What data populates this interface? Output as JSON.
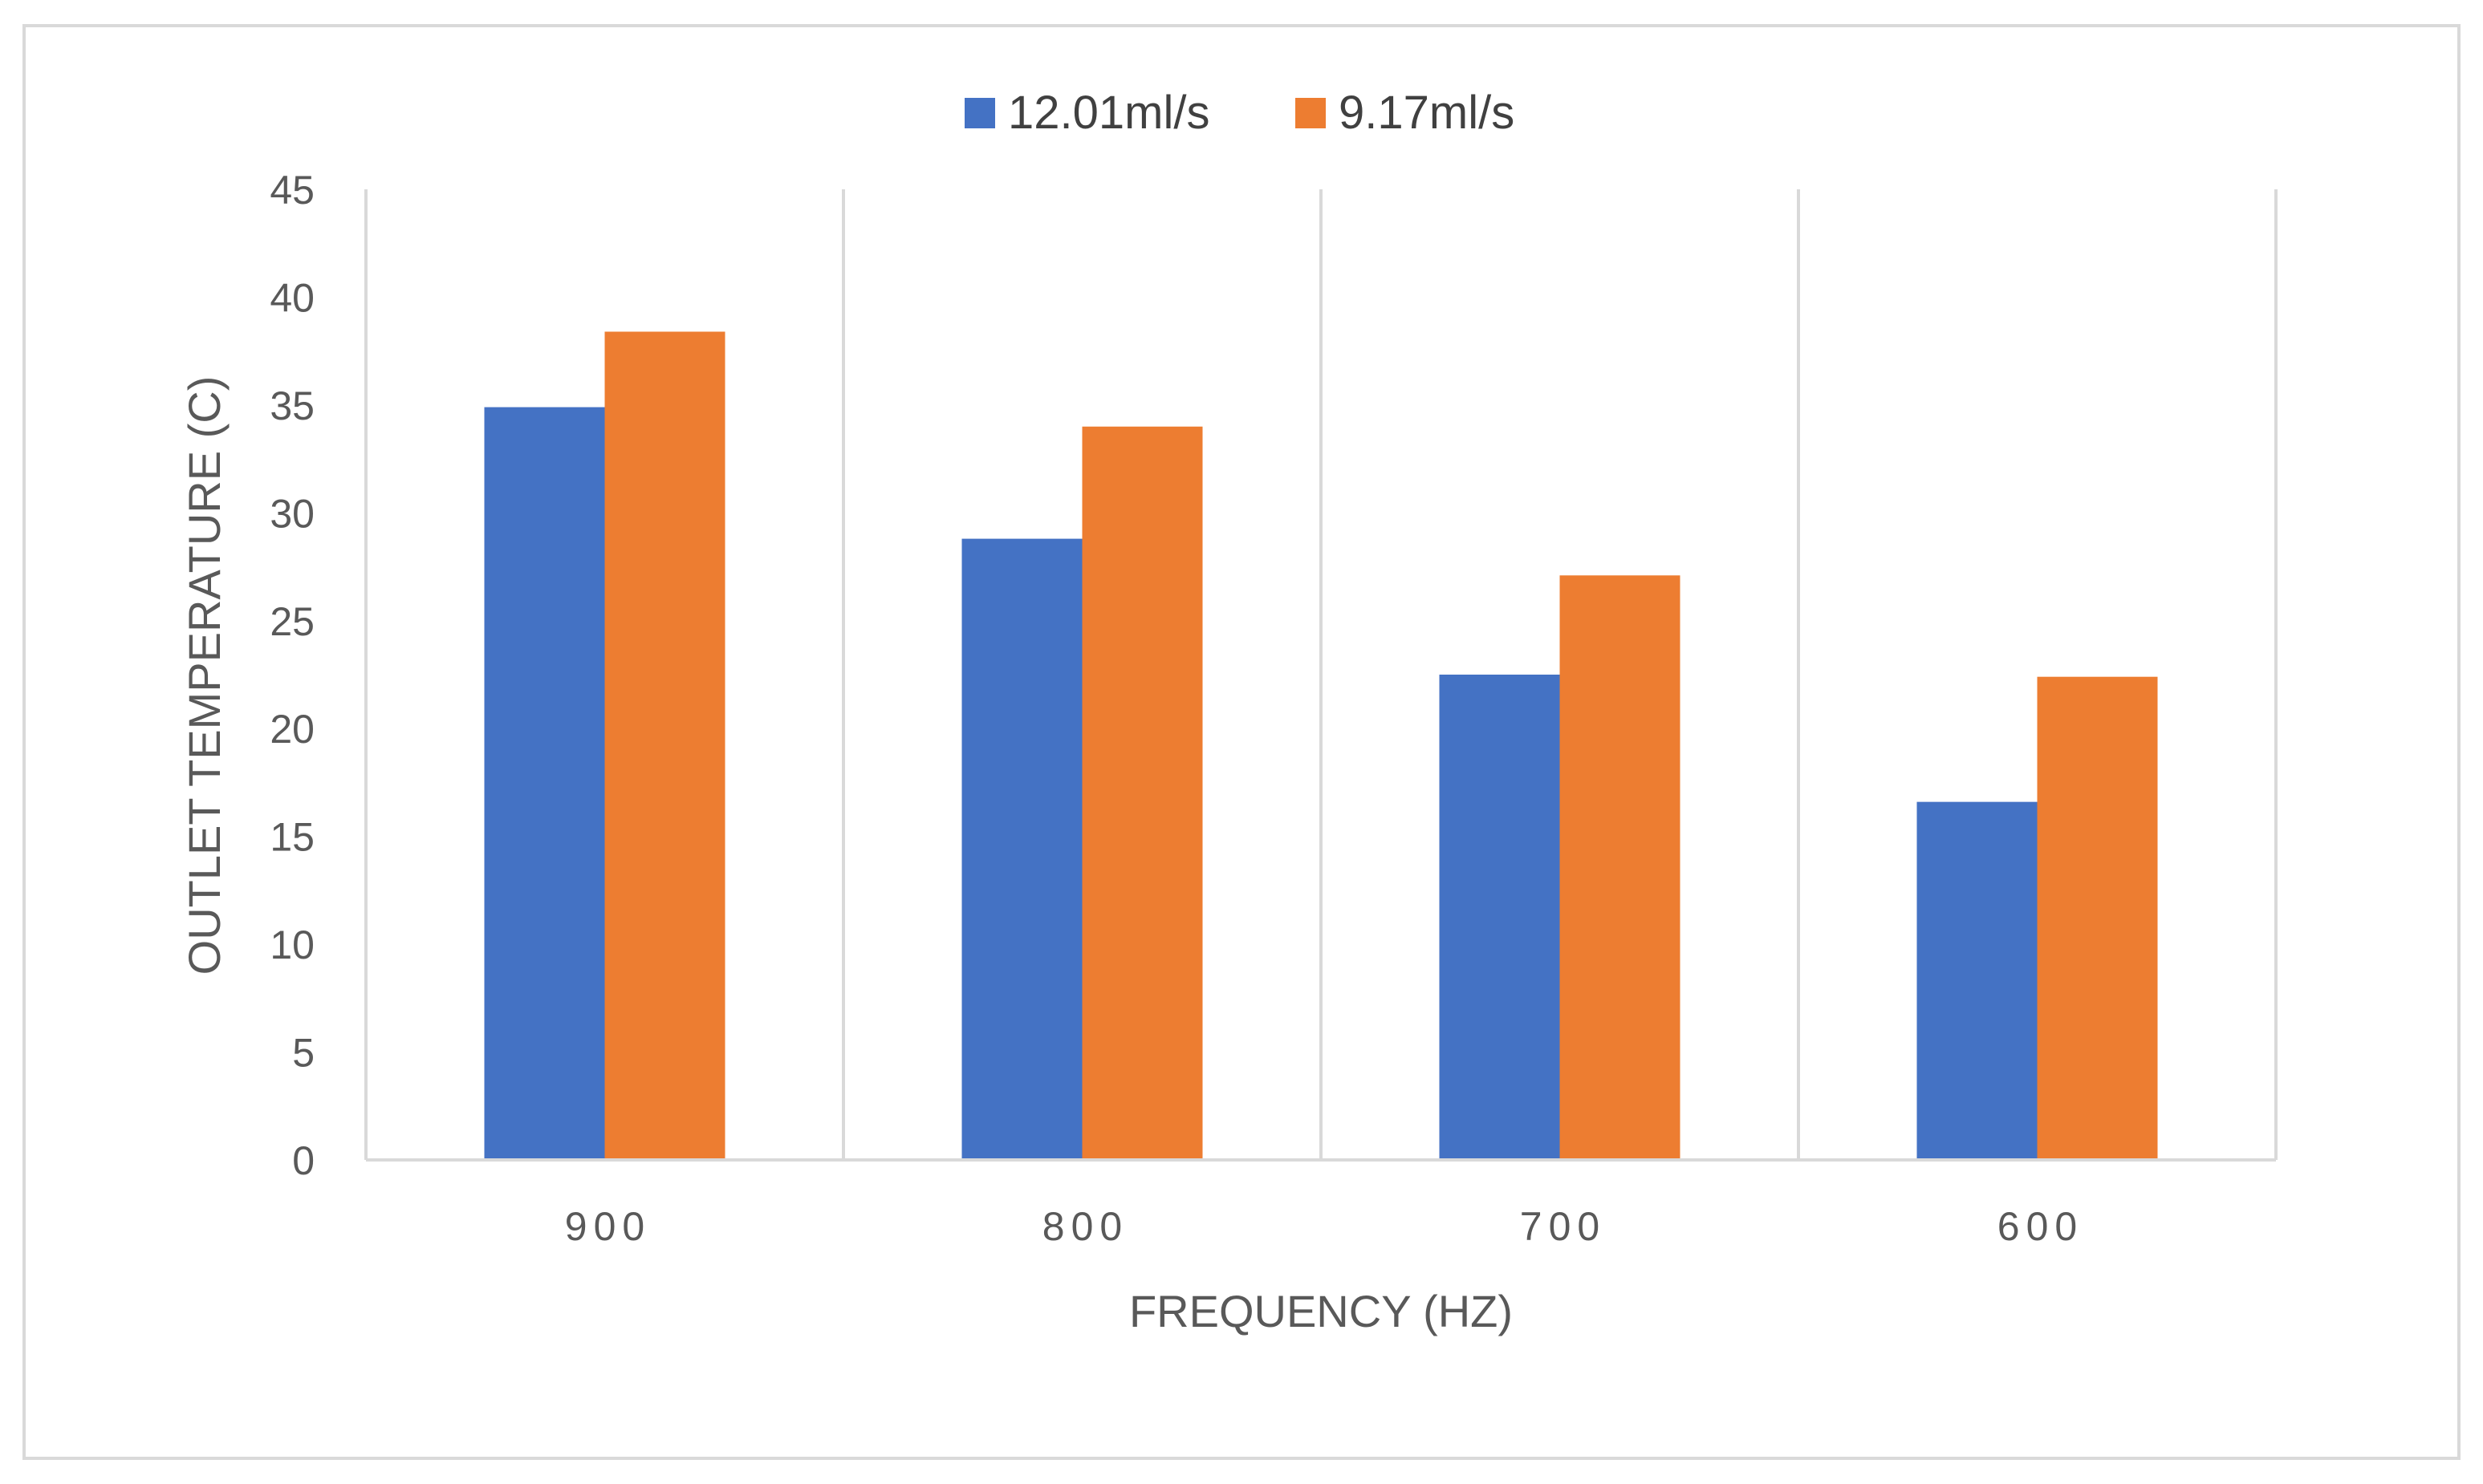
{
  "chart_data": {
    "type": "bar",
    "title": "",
    "xlabel": "FREQUENCY (HZ)",
    "ylabel": "OUTLET TEMPERATURE (C)",
    "categories": [
      "900",
      "800",
      "700",
      "600"
    ],
    "series": [
      {
        "name": "12.01ml/s",
        "color": "#4472c4",
        "values": [
          34.9,
          28.8,
          22.5,
          16.6
        ]
      },
      {
        "name": "9.17ml/s",
        "color": "#ed7d31",
        "values": [
          38.4,
          34.0,
          27.1,
          22.4
        ]
      }
    ],
    "ylim": [
      0,
      45
    ],
    "yticks": [
      "0",
      "5",
      "10",
      "15",
      "20",
      "25",
      "30",
      "35",
      "40",
      "45"
    ],
    "legend_position": "top-center",
    "grid": "vertical-category-separators"
  }
}
